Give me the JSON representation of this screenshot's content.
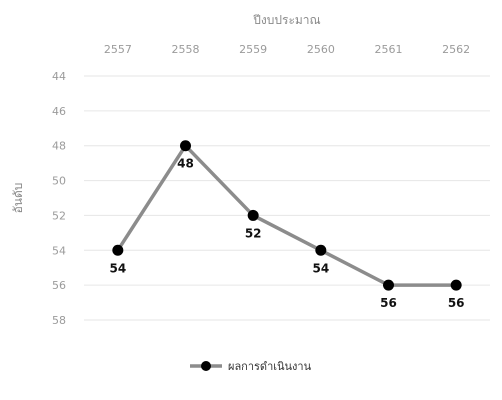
{
  "chart_data": {
    "type": "line",
    "xlabel": "ปีงบประมาณ",
    "ylabel": "อันดับ",
    "x": [
      "2557",
      "2558",
      "2559",
      "2560",
      "2561",
      "2562"
    ],
    "series": [
      {
        "name": "ผลการดำเนินงาน",
        "values": [
          54,
          48,
          52,
          54,
          56,
          56
        ]
      }
    ],
    "ylim": [
      44,
      58
    ],
    "y_ticks": [
      "44",
      "46",
      "48",
      "50",
      "52",
      "54",
      "56",
      "58"
    ],
    "y_inverted": true,
    "x_axis_position": "top",
    "grid": true,
    "legend_position": "bottom",
    "colors": {
      "line": "#8c8c8c",
      "marker": "#000000",
      "grid": "#e6e6e6"
    },
    "data_labels": [
      "54",
      "48",
      "52",
      "54",
      "56",
      "56"
    ]
  }
}
